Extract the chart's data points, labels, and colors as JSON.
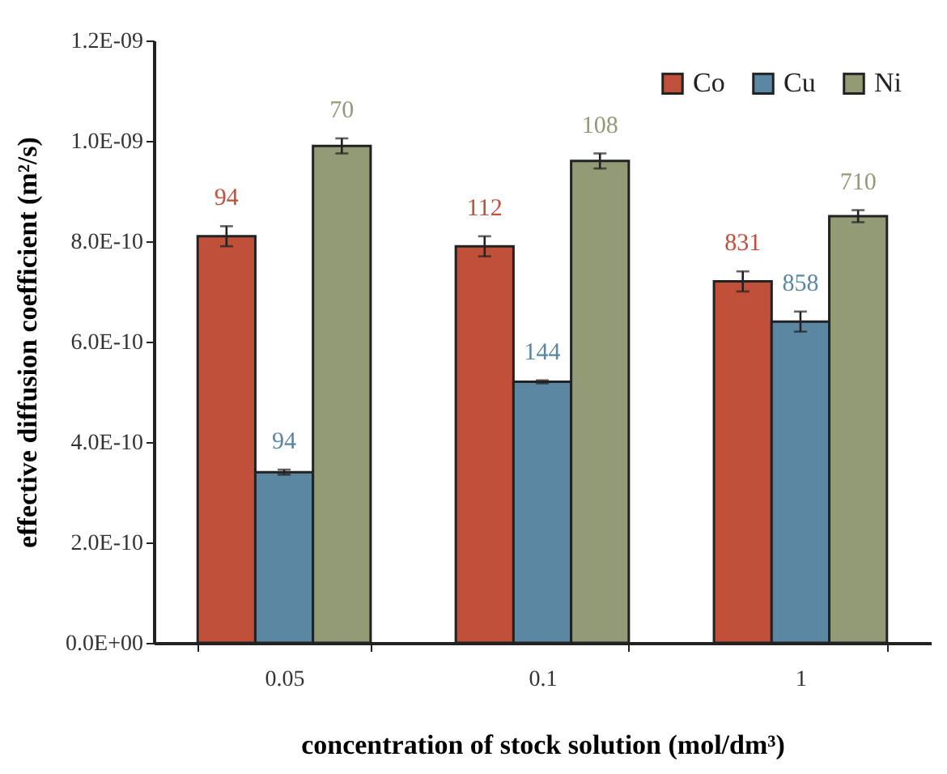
{
  "chart_data": {
    "type": "bar",
    "xlabel": "concentration of stock solution (mol/dm³)",
    "ylabel": "effective diffusion coefficient (m²/s)",
    "categories": [
      "0.05",
      "0.1",
      "1"
    ],
    "series": [
      {
        "name": "Co",
        "color": "#c0503a",
        "values": [
          8.1e-10,
          7.9e-10,
          7.2e-10
        ],
        "errors": [
          2e-11,
          2e-11,
          2e-11
        ]
      },
      {
        "name": "Cu",
        "color": "#5b87a2",
        "values": [
          3.4e-10,
          5.2e-10,
          6.4e-10
        ],
        "errors": [
          5e-12,
          3e-12,
          2e-11
        ]
      },
      {
        "name": "Ni",
        "color": "#939a76",
        "values": [
          9.9e-10,
          9.6e-10,
          8.5e-10
        ],
        "errors": [
          1.5e-11,
          1.5e-11,
          1.2e-11
        ]
      }
    ],
    "annotations": [
      "94",
      "112",
      "831",
      "94",
      "144",
      "858",
      "70",
      "108",
      "710"
    ],
    "ylim": [
      0,
      1.2e-09
    ],
    "yticks": [
      {
        "value": 0,
        "label": "0.0E+00"
      },
      {
        "value": 2e-10,
        "label": "2.0E-10"
      },
      {
        "value": 4e-10,
        "label": "4.0E-10"
      },
      {
        "value": 6e-10,
        "label": "6.0E-10"
      },
      {
        "value": 8e-10,
        "label": "8.0E-10"
      },
      {
        "value": 1e-09,
        "label": "1.0E-09"
      },
      {
        "value": 1.2e-09,
        "label": "1.2E-09"
      }
    ],
    "grid": false,
    "legend": "top right"
  }
}
